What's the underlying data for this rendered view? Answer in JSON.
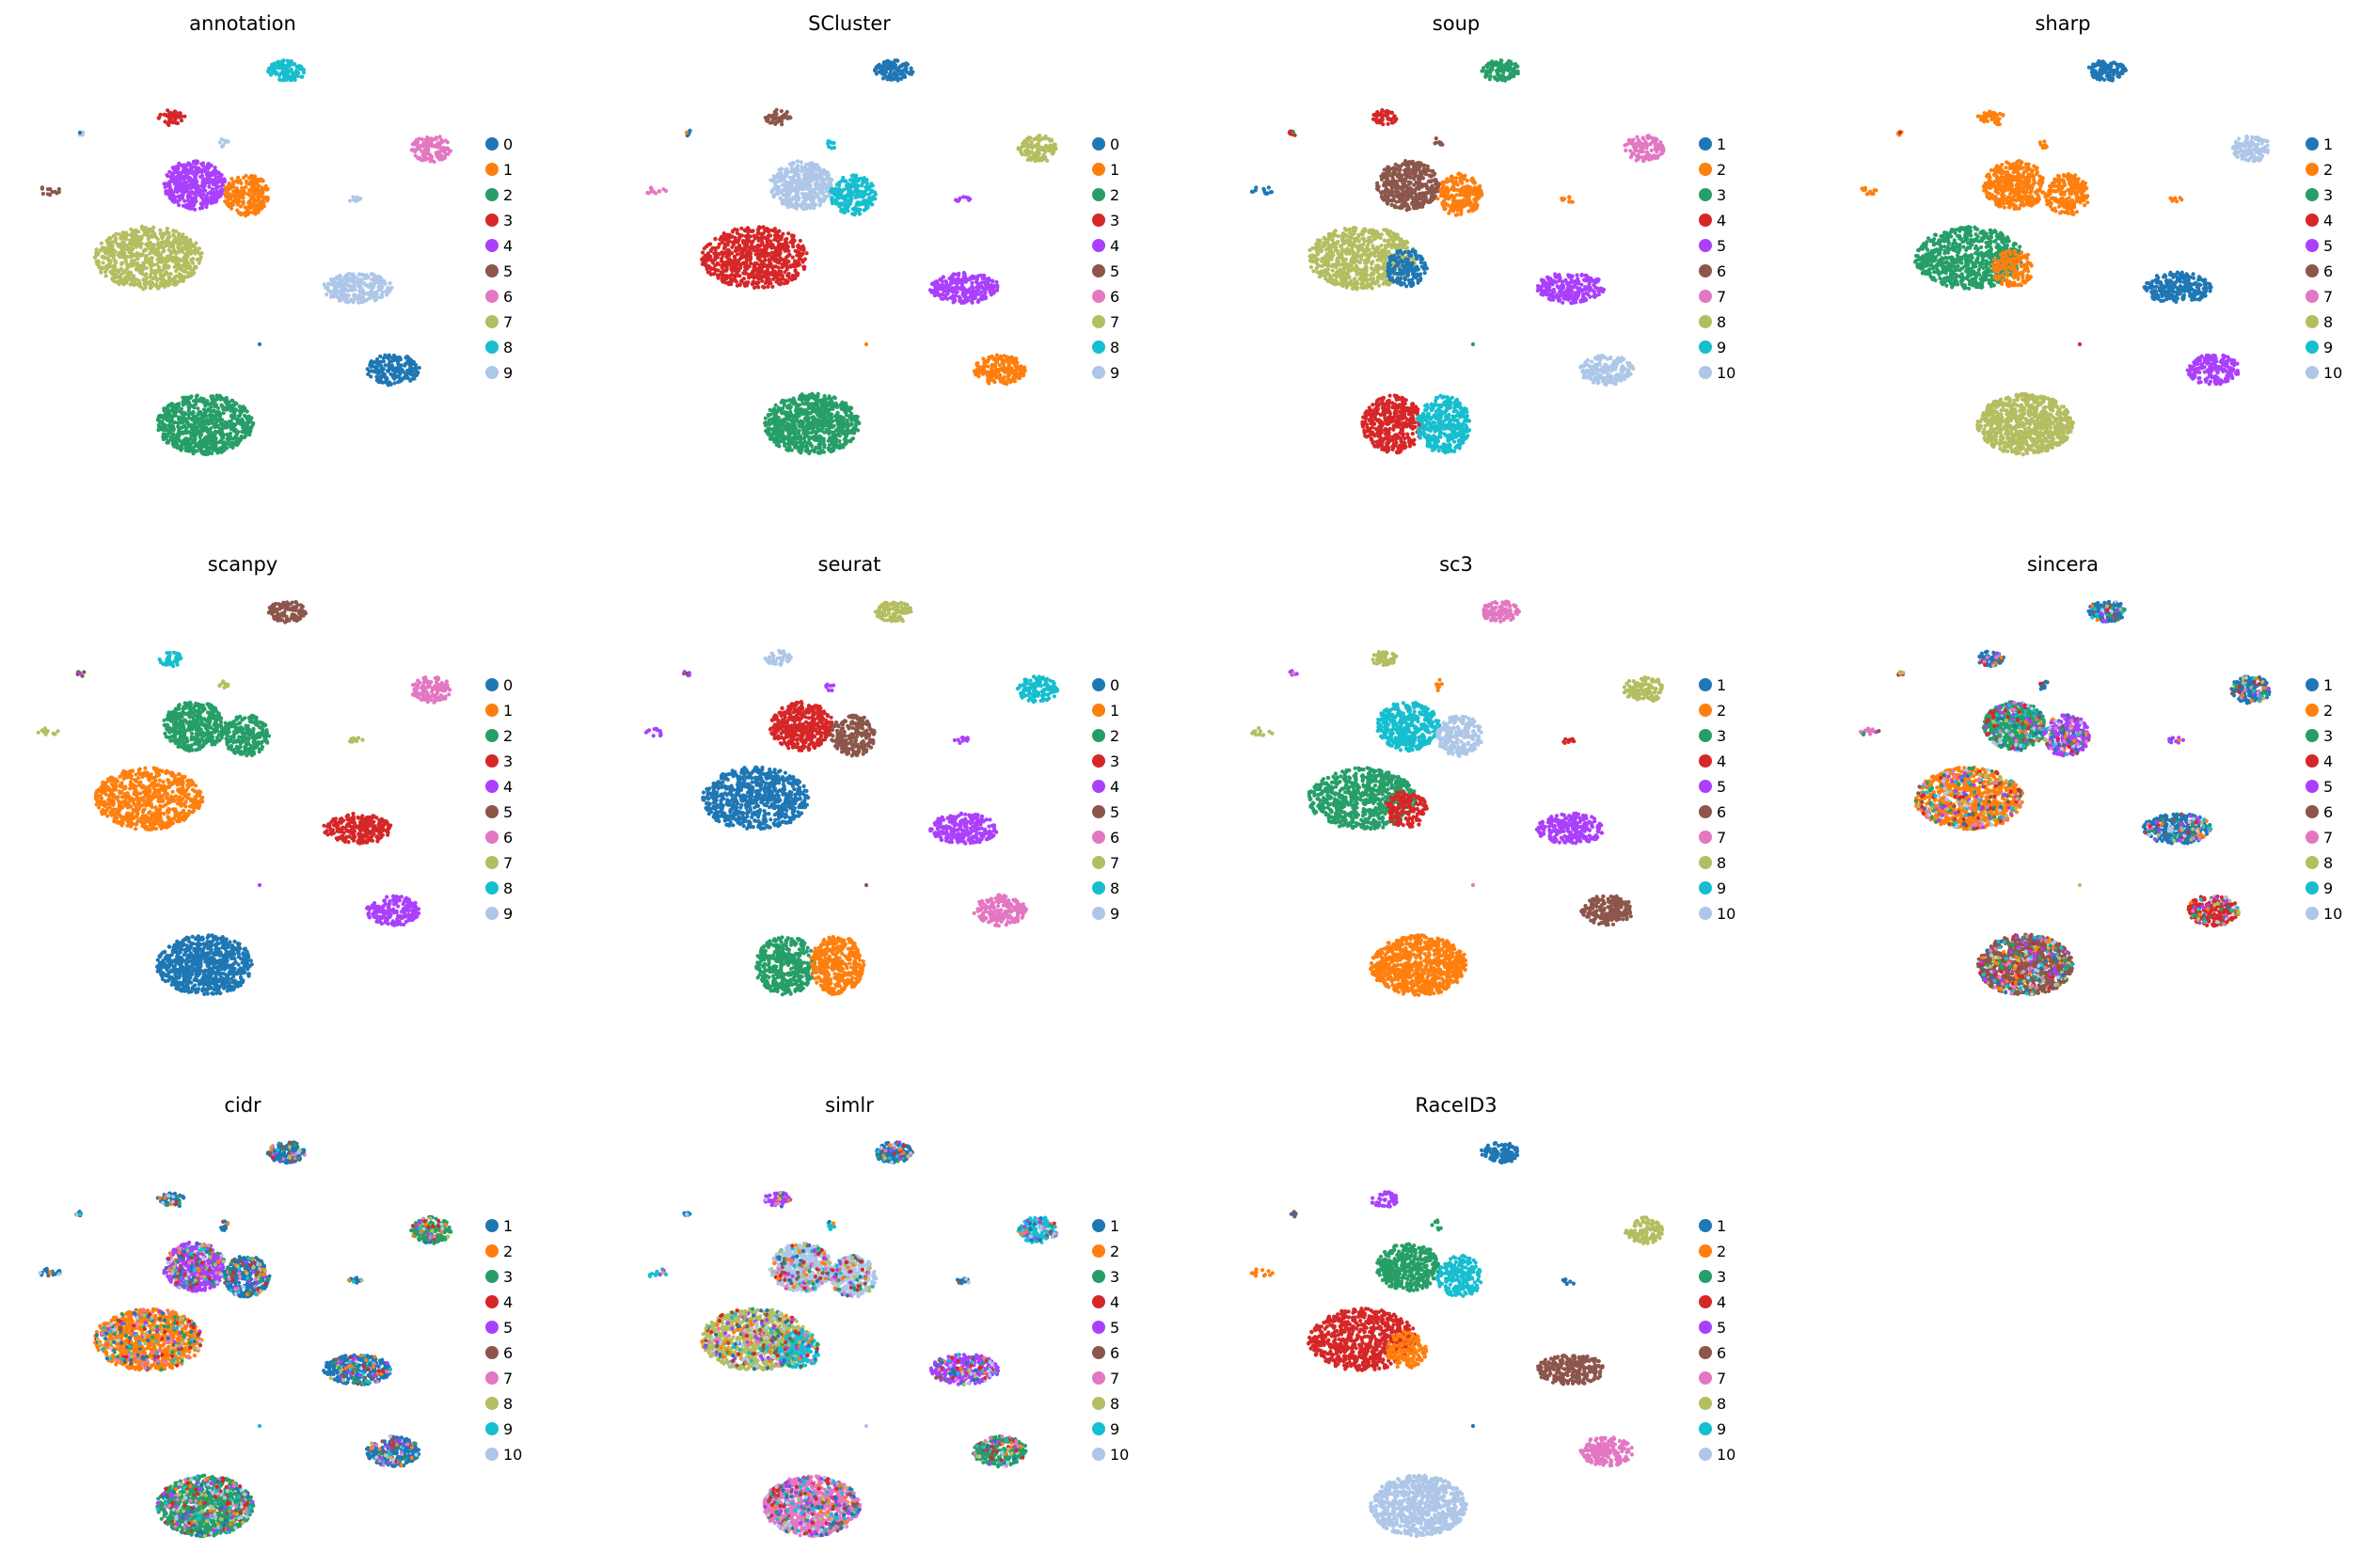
{
  "figure": {
    "palette": [
      "#1f77b4",
      "#ff7f0e",
      "#279e68",
      "#d62728",
      "#aa40fc",
      "#8c564b",
      "#e377c2",
      "#b5bd61",
      "#17becf",
      "#aec7e8"
    ]
  },
  "chart_data": [
    {
      "type": "scatter",
      "title": "annotation",
      "legend": [
        "0",
        "1",
        "2",
        "3",
        "4",
        "5",
        "6",
        "7",
        "8",
        "9"
      ],
      "legend_position": "right",
      "clusters": [
        {
          "name": "top-right-small",
          "legend_index": 8
        },
        {
          "name": "upper-left-small",
          "legend_index": 3
        },
        {
          "name": "tiny-a",
          "legend_index": 9
        },
        {
          "name": "tiny-b",
          "legend_index": 9
        },
        {
          "name": "left-mid",
          "legend_index": 4
        },
        {
          "name": "left-mid-right",
          "legend_index": 1
        },
        {
          "name": "far-left-speck",
          "legend_index": 5
        },
        {
          "name": "large-left",
          "legend_index": 7
        },
        {
          "name": "right-top",
          "legend_index": 6
        },
        {
          "name": "right-speck",
          "legend_index": 9
        },
        {
          "name": "right-mid",
          "legend_index": 9
        },
        {
          "name": "right-low",
          "legend_index": 0
        },
        {
          "name": "bottom-large",
          "legend_index": 2
        }
      ]
    },
    {
      "type": "scatter",
      "title": "SCluster",
      "legend": [
        "0",
        "1",
        "2",
        "3",
        "4",
        "5",
        "6",
        "7",
        "8",
        "9"
      ],
      "legend_position": "right",
      "clusters": [
        {
          "name": "top-right-small",
          "legend_index": 0
        },
        {
          "name": "upper-left-small",
          "legend_index": 5
        },
        {
          "name": "tiny-a",
          "legend_index": 0
        },
        {
          "name": "tiny-b",
          "legend_index": 8
        },
        {
          "name": "left-mid",
          "legend_index": 9
        },
        {
          "name": "left-mid-right",
          "legend_index": 8
        },
        {
          "name": "far-left-speck",
          "legend_index": 6
        },
        {
          "name": "large-left",
          "legend_index": 3
        },
        {
          "name": "right-top",
          "legend_index": 7
        },
        {
          "name": "right-speck",
          "legend_index": 4
        },
        {
          "name": "right-mid",
          "legend_index": 4
        },
        {
          "name": "right-low",
          "legend_index": 1
        },
        {
          "name": "bottom-large",
          "legend_index": 2
        }
      ]
    },
    {
      "type": "scatter",
      "title": "soup",
      "legend": [
        "1",
        "2",
        "3",
        "4",
        "5",
        "6",
        "7",
        "8",
        "9",
        "10"
      ],
      "legend_position": "right",
      "clusters": [
        {
          "name": "top-right-small",
          "legend_index": 2
        },
        {
          "name": "upper-left-small",
          "legend_index": 3
        },
        {
          "name": "tiny-a",
          "legend_index": 3
        },
        {
          "name": "tiny-b",
          "legend_index": 5
        },
        {
          "name": "left-mid",
          "legend_index": 5
        },
        {
          "name": "left-mid-right",
          "legend_index": 1
        },
        {
          "name": "far-left-speck",
          "legend_index": 0
        },
        {
          "name": "large-left",
          "legend_index": 7
        },
        {
          "name": "large-left-right",
          "legend_index": 0
        },
        {
          "name": "right-top",
          "legend_index": 6
        },
        {
          "name": "right-speck",
          "legend_index": 1
        },
        {
          "name": "right-mid",
          "legend_index": 4
        },
        {
          "name": "right-low",
          "legend_index": 9
        },
        {
          "name": "bottom-large-left",
          "legend_index": 3
        },
        {
          "name": "bottom-large-right",
          "legend_index": 8
        }
      ]
    },
    {
      "type": "scatter",
      "title": "sharp",
      "legend": [
        "1",
        "2",
        "3",
        "4",
        "5",
        "6",
        "7",
        "8",
        "9",
        "10"
      ],
      "legend_position": "right",
      "clusters": [
        {
          "name": "top-right-small",
          "legend_index": 0
        },
        {
          "name": "upper-left-small",
          "legend_index": 1
        },
        {
          "name": "tiny-a",
          "legend_index": 1
        },
        {
          "name": "tiny-b",
          "legend_index": 1
        },
        {
          "name": "left-mid",
          "legend_index": 1
        },
        {
          "name": "left-mid-right",
          "legend_index": 1
        },
        {
          "name": "far-left-speck",
          "legend_index": 1
        },
        {
          "name": "large-left",
          "legend_index": 2
        },
        {
          "name": "large-left-right",
          "legend_index": 1
        },
        {
          "name": "right-top",
          "legend_index": 9
        },
        {
          "name": "right-speck",
          "legend_index": 1
        },
        {
          "name": "right-mid",
          "legend_index": 0
        },
        {
          "name": "right-low",
          "legend_index": 4
        },
        {
          "name": "bottom-large",
          "legend_index": 7
        }
      ]
    },
    {
      "type": "scatter",
      "title": "scanpy",
      "legend": [
        "0",
        "1",
        "2",
        "3",
        "4",
        "5",
        "6",
        "7",
        "8",
        "9"
      ],
      "legend_position": "right",
      "clusters": [
        {
          "name": "top-right-small",
          "legend_index": 5
        },
        {
          "name": "upper-left-small",
          "legend_index": 8
        },
        {
          "name": "tiny-a",
          "legend_index": 5
        },
        {
          "name": "tiny-b",
          "legend_index": 7
        },
        {
          "name": "left-mid",
          "legend_index": 2
        },
        {
          "name": "left-mid-right",
          "legend_index": 2
        },
        {
          "name": "far-left-speck",
          "legend_index": 7
        },
        {
          "name": "large-left",
          "legend_index": 1
        },
        {
          "name": "right-top",
          "legend_index": 6
        },
        {
          "name": "right-speck",
          "legend_index": 7
        },
        {
          "name": "right-mid",
          "legend_index": 3
        },
        {
          "name": "right-low",
          "legend_index": 4
        },
        {
          "name": "bottom-large",
          "legend_index": 0
        }
      ]
    },
    {
      "type": "scatter",
      "title": "seurat",
      "legend": [
        "0",
        "1",
        "2",
        "3",
        "4",
        "5",
        "6",
        "7",
        "8",
        "9"
      ],
      "legend_position": "right",
      "clusters": [
        {
          "name": "top-right-small",
          "legend_index": 7
        },
        {
          "name": "upper-left-small",
          "legend_index": 9
        },
        {
          "name": "tiny-a",
          "legend_index": 4
        },
        {
          "name": "tiny-b",
          "legend_index": 4
        },
        {
          "name": "left-mid",
          "legend_index": 3
        },
        {
          "name": "left-mid-right",
          "legend_index": 5
        },
        {
          "name": "far-left-speck",
          "legend_index": 4
        },
        {
          "name": "large-left",
          "legend_index": 0
        },
        {
          "name": "right-top",
          "legend_index": 8
        },
        {
          "name": "right-speck",
          "legend_index": 4
        },
        {
          "name": "right-mid",
          "legend_index": 4
        },
        {
          "name": "right-low",
          "legend_index": 6
        },
        {
          "name": "bottom-large-left",
          "legend_index": 2
        },
        {
          "name": "bottom-large-right",
          "legend_index": 1
        }
      ]
    },
    {
      "type": "scatter",
      "title": "sc3",
      "legend": [
        "1",
        "2",
        "3",
        "4",
        "5",
        "6",
        "7",
        "8",
        "9",
        "10"
      ],
      "legend_position": "right",
      "clusters": [
        {
          "name": "top-right-small",
          "legend_index": 6
        },
        {
          "name": "upper-left-small",
          "legend_index": 7
        },
        {
          "name": "tiny-a",
          "legend_index": 4
        },
        {
          "name": "tiny-b",
          "legend_index": 1
        },
        {
          "name": "left-mid",
          "legend_index": 8
        },
        {
          "name": "left-mid-right",
          "legend_index": 9
        },
        {
          "name": "far-left-speck",
          "legend_index": 7
        },
        {
          "name": "large-left",
          "legend_index": 2
        },
        {
          "name": "large-left-right",
          "legend_index": 3
        },
        {
          "name": "right-top",
          "legend_index": 7
        },
        {
          "name": "right-speck",
          "legend_index": 3
        },
        {
          "name": "right-mid",
          "legend_index": 4
        },
        {
          "name": "right-low",
          "legend_index": 5
        },
        {
          "name": "bottom-large",
          "legend_index": 1
        }
      ]
    },
    {
      "type": "scatter",
      "title": "sincera",
      "legend": [
        "1",
        "2",
        "3",
        "4",
        "5",
        "6",
        "7",
        "8",
        "9",
        "10"
      ],
      "legend_position": "right",
      "clusters": [
        {
          "name": "top-right-small",
          "legend_index": 0
        },
        {
          "name": "upper-left-small",
          "legend_index": 0
        },
        {
          "name": "tiny-a",
          "legend_index": 3
        },
        {
          "name": "tiny-b",
          "legend_index": 0
        },
        {
          "name": "left-mid",
          "legend_index": 2
        },
        {
          "name": "left-mid-right",
          "legend_index": 4
        },
        {
          "name": "far-left-speck",
          "legend_index": 6
        },
        {
          "name": "large-left",
          "legend_index": 1
        },
        {
          "name": "right-top",
          "legend_index": 0
        },
        {
          "name": "right-speck",
          "legend_index": 4
        },
        {
          "name": "right-mid",
          "legend_index": 0
        },
        {
          "name": "right-low",
          "legend_index": 3
        },
        {
          "name": "bottom-large",
          "legend_index": 5
        }
      ]
    },
    {
      "type": "scatter",
      "title": "cidr",
      "legend": [
        "1",
        "2",
        "3",
        "4",
        "5",
        "6",
        "7",
        "8",
        "9",
        "10"
      ],
      "legend_position": "right",
      "clusters": [
        {
          "name": "top-right-small",
          "legend_index": 0
        },
        {
          "name": "upper-left-small",
          "legend_index": 0
        },
        {
          "name": "tiny-a",
          "legend_index": 0
        },
        {
          "name": "tiny-b",
          "legend_index": 0
        },
        {
          "name": "left-mid",
          "legend_index": 4
        },
        {
          "name": "left-mid-right",
          "legend_index": 0
        },
        {
          "name": "far-left-speck",
          "legend_index": 0
        },
        {
          "name": "large-left",
          "legend_index": 1
        },
        {
          "name": "right-top",
          "legend_index": 2
        },
        {
          "name": "right-speck",
          "legend_index": 0
        },
        {
          "name": "right-mid",
          "legend_index": 0
        },
        {
          "name": "right-low",
          "legend_index": 0
        },
        {
          "name": "bottom-large",
          "legend_index": 2
        }
      ]
    },
    {
      "type": "scatter",
      "title": "simlr",
      "legend": [
        "1",
        "2",
        "3",
        "4",
        "5",
        "6",
        "7",
        "8",
        "9",
        "10"
      ],
      "legend_position": "right",
      "clusters": [
        {
          "name": "top-right-small",
          "legend_index": 0
        },
        {
          "name": "upper-left-small",
          "legend_index": 4
        },
        {
          "name": "tiny-a",
          "legend_index": 0
        },
        {
          "name": "tiny-b",
          "legend_index": 8
        },
        {
          "name": "left-mid",
          "legend_index": 9
        },
        {
          "name": "left-mid-right",
          "legend_index": 9
        },
        {
          "name": "far-left-speck",
          "legend_index": 8
        },
        {
          "name": "large-left",
          "legend_index": 7
        },
        {
          "name": "large-left-right",
          "legend_index": 8
        },
        {
          "name": "right-top",
          "legend_index": 8
        },
        {
          "name": "right-speck",
          "legend_index": 0
        },
        {
          "name": "right-mid",
          "legend_index": 4
        },
        {
          "name": "right-low",
          "legend_index": 2
        },
        {
          "name": "bottom-large",
          "legend_index": 6
        }
      ]
    },
    {
      "type": "scatter",
      "title": "RaceID3",
      "legend": [
        "1",
        "2",
        "3",
        "4",
        "5",
        "6",
        "7",
        "8",
        "9",
        "10"
      ],
      "legend_position": "right",
      "clusters": [
        {
          "name": "top-right-small",
          "legend_index": 0
        },
        {
          "name": "upper-left-small",
          "legend_index": 4
        },
        {
          "name": "tiny-a",
          "legend_index": 5
        },
        {
          "name": "tiny-b",
          "legend_index": 2
        },
        {
          "name": "left-mid",
          "legend_index": 2
        },
        {
          "name": "left-mid-right",
          "legend_index": 8
        },
        {
          "name": "far-left-speck",
          "legend_index": 1
        },
        {
          "name": "large-left",
          "legend_index": 3
        },
        {
          "name": "large-left-right",
          "legend_index": 1
        },
        {
          "name": "right-top",
          "legend_index": 7
        },
        {
          "name": "right-speck",
          "legend_index": 0
        },
        {
          "name": "right-mid",
          "legend_index": 5
        },
        {
          "name": "right-low",
          "legend_index": 6
        },
        {
          "name": "bottom-large",
          "legend_index": 9
        }
      ]
    }
  ]
}
